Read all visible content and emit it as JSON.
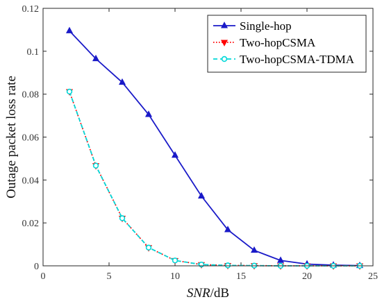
{
  "chart_data": {
    "type": "line",
    "title": "",
    "xlabel_italic": "SNR",
    "xlabel_suffix": "/dB",
    "ylabel": "Outage packet loss rate",
    "xlim": [
      0,
      25
    ],
    "ylim": [
      0,
      0.12
    ],
    "xticks": [
      0,
      5,
      10,
      15,
      20,
      25
    ],
    "xtick_labels": [
      "0",
      "5",
      "10",
      "15",
      "20",
      "25"
    ],
    "yticks": [
      0,
      0.02,
      0.04,
      0.06,
      0.08,
      0.1,
      0.12
    ],
    "ytick_labels": [
      "0",
      "0.02",
      "0.04",
      "0.06",
      "0.08",
      "0.1",
      "0.12"
    ],
    "grid": false,
    "legend_position": "top-right",
    "series": [
      {
        "name": "Single-hop",
        "color": "#1a1ac8",
        "line_style": "solid",
        "marker": "triangle-up",
        "x": [
          2,
          4,
          6,
          8,
          10,
          12,
          14,
          16,
          18,
          20,
          22,
          24
        ],
        "y": [
          0.1095,
          0.0965,
          0.0855,
          0.0705,
          0.0515,
          0.0325,
          0.0168,
          0.0072,
          0.0025,
          0.0008,
          0.0003,
          0.0001
        ]
      },
      {
        "name": "Two-hopCSMA",
        "color": "#ff0000",
        "line_style": "dotted",
        "marker": "triangle-down",
        "x": [
          2,
          4,
          6,
          8,
          10,
          12,
          14,
          16,
          18,
          20,
          22,
          24
        ],
        "y": [
          0.0812,
          0.0467,
          0.0222,
          0.0085,
          0.0025,
          0.0006,
          0.0002,
          0.0001,
          0.0,
          0.0,
          0.0,
          0.0
        ]
      },
      {
        "name": "Two-hopCSMA-TDMA",
        "color": "#00d8d8",
        "line_style": "dashed",
        "marker": "circle",
        "x": [
          2,
          4,
          6,
          8,
          10,
          12,
          14,
          16,
          18,
          20,
          22,
          24
        ],
        "y": [
          0.0812,
          0.0467,
          0.0222,
          0.0085,
          0.0025,
          0.0006,
          0.0002,
          0.0001,
          0.0,
          0.0,
          0.0,
          0.0
        ]
      }
    ]
  }
}
